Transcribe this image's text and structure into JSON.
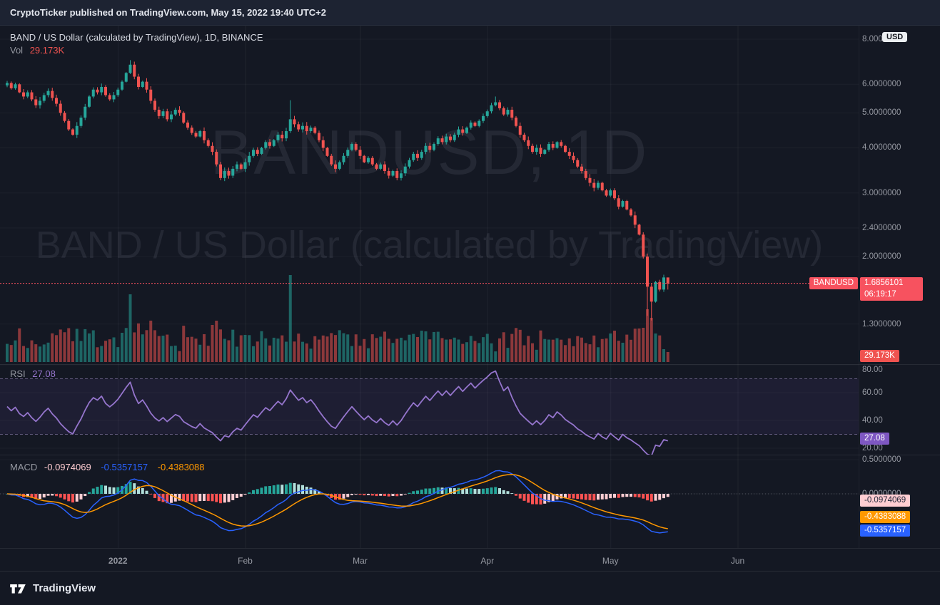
{
  "header": {
    "text": "CryptoTicker published on TradingView.com, May 15, 2022 19:40 UTC+2"
  },
  "legend": {
    "title": "BAND / US Dollar (calculated by TradingView), 1D, BINANCE",
    "vol_label": "Vol",
    "vol_value": "29.173K"
  },
  "watermark": {
    "line1": "BANDUSD, 1D",
    "line2": "BAND / US Dollar (calculated by TradingView)"
  },
  "price_axis": {
    "unit": "USD",
    "ticks": [
      {
        "label": "8.0000000",
        "value": 8
      },
      {
        "label": "6.0000000",
        "value": 6
      },
      {
        "label": "5.0000000",
        "value": 5
      },
      {
        "label": "4.0000000",
        "value": 4
      },
      {
        "label": "3.0000000",
        "value": 3
      },
      {
        "label": "2.4000000",
        "value": 2.4
      },
      {
        "label": "2.0000000",
        "value": 2
      },
      {
        "label": "1.3000000",
        "value": 1.3
      }
    ],
    "symbol_badge": "BANDUSD",
    "price_badge": "1.6856101",
    "countdown": "06:19:17",
    "volume_badge": "29.173K"
  },
  "rsi": {
    "label": "RSI",
    "value": "27.08",
    "badge": "27.08",
    "upper": 70,
    "lower": 30,
    "ticks": [
      {
        "label": "80.00",
        "value": 80
      },
      {
        "label": "60.00",
        "value": 60
      },
      {
        "label": "40.00",
        "value": 40
      },
      {
        "label": "20.00",
        "value": 20
      }
    ]
  },
  "macd": {
    "label": "MACD",
    "hist_value": "-0.0974069",
    "macd_value": "-0.5357157",
    "signal_value": "-0.4383088",
    "hist_badge": "-0.0974069",
    "signal_badge": "-0.4383088",
    "macd_badge": "-0.5357157",
    "ticks": [
      {
        "label": "0.5000000",
        "value": 0.5
      },
      {
        "label": "0.0000000",
        "value": 0
      }
    ]
  },
  "time_axis": {
    "labels": [
      {
        "text": "2022",
        "day": 27
      },
      {
        "text": "Feb",
        "day": 58
      },
      {
        "text": "Mar",
        "day": 86
      },
      {
        "text": "Apr",
        "day": 117
      },
      {
        "text": "May",
        "day": 147
      },
      {
        "text": "Jun",
        "day": 178
      }
    ]
  },
  "footer": {
    "brand": "TradingView"
  },
  "colors": {
    "up": "#26a69a",
    "down": "#ef5350",
    "accent": "#f7525f",
    "volume_up": "rgba(38,166,154,0.55)",
    "volume_down": "rgba(239,83,80,0.55)",
    "rsi_line": "#9575cd",
    "rsi_badge": "#7e57c2",
    "macd_line": "#2962ff",
    "signal_line": "#ff9800",
    "hist_grow_above": "#26a69a",
    "hist_fall_above": "#b2dfdb",
    "hist_grow_below": "#ffcdd2",
    "hist_fall_below": "#ff5252",
    "hist_badge_bg": "#ffcdd2",
    "hist_badge_text": "#23283a"
  },
  "chart_data": {
    "type": "candlestick",
    "symbol": "BANDUSD",
    "interval": "1D",
    "exchange": "BINANCE",
    "y_axis": {
      "scale": "log",
      "visible_ticks": [
        8,
        6,
        5,
        4,
        3,
        2.4,
        2,
        1.3
      ]
    },
    "closes": [
      6.05,
      5.85,
      6.0,
      5.7,
      5.55,
      5.7,
      5.45,
      5.25,
      5.4,
      5.6,
      5.75,
      5.5,
      5.3,
      5.0,
      4.75,
      4.5,
      4.35,
      4.6,
      4.85,
      5.2,
      5.55,
      5.8,
      5.7,
      5.9,
      5.6,
      5.45,
      5.6,
      5.8,
      6.1,
      6.45,
      6.8,
      6.3,
      5.9,
      6.1,
      5.8,
      5.4,
      5.1,
      4.9,
      5.05,
      4.8,
      4.95,
      5.1,
      5.0,
      4.7,
      4.55,
      4.4,
      4.3,
      4.45,
      4.2,
      4.05,
      3.9,
      3.6,
      3.3,
      3.45,
      3.35,
      3.5,
      3.6,
      3.5,
      3.65,
      3.8,
      3.95,
      3.85,
      4.0,
      4.15,
      4.05,
      4.2,
      4.35,
      4.25,
      4.45,
      4.8,
      4.65,
      4.5,
      4.6,
      4.45,
      4.55,
      4.4,
      4.2,
      4.0,
      3.8,
      3.6,
      3.5,
      3.65,
      3.8,
      3.95,
      4.1,
      3.95,
      3.8,
      3.65,
      3.75,
      3.6,
      3.5,
      3.6,
      3.45,
      3.35,
      3.45,
      3.3,
      3.4,
      3.55,
      3.7,
      3.85,
      3.75,
      3.9,
      4.05,
      3.95,
      4.1,
      4.25,
      4.15,
      4.3,
      4.2,
      4.35,
      4.5,
      4.4,
      4.55,
      4.7,
      4.6,
      4.75,
      4.9,
      5.05,
      5.25,
      5.35,
      5.15,
      4.95,
      5.1,
      4.85,
      4.6,
      4.35,
      4.2,
      4.05,
      3.9,
      4.0,
      3.85,
      3.95,
      4.1,
      4.0,
      4.15,
      4.05,
      3.9,
      3.8,
      3.7,
      3.55,
      3.45,
      3.3,
      3.2,
      3.1,
      3.2,
      3.05,
      2.95,
      3.05,
      2.9,
      2.75,
      2.85,
      2.7,
      2.6,
      2.45,
      2.3,
      2.0,
      1.65,
      1.5,
      1.7,
      1.62,
      1.75,
      1.6856101
    ],
    "wick_overrides": {
      "30": {
        "high": 7.0
      },
      "69": {
        "high": 5.42
      },
      "119": {
        "high": 5.55
      },
      "156": {
        "low": 1.37
      },
      "157": {
        "low": 1.33
      },
      "161": {
        "high": 1.72,
        "low": 1.62
      }
    },
    "volume_overrides": {
      "30": 95,
      "50": 52,
      "51": 58,
      "69": 122,
      "155": 48,
      "156": 74,
      "157": 62,
      "158": 40,
      "160": 18,
      "161": 14
    },
    "last": {
      "price": 1.6856101,
      "countdown": "06:19:17",
      "volume": "29.173K",
      "rsi": 27.08,
      "macd": -0.5357157,
      "signal": -0.4383088,
      "histogram": -0.0974069
    },
    "indicators": [
      {
        "type": "RSI",
        "length": 14,
        "upper": 70,
        "lower": 30
      },
      {
        "type": "MACD",
        "fast": 12,
        "slow": 26,
        "smoothing": 9
      }
    ]
  }
}
